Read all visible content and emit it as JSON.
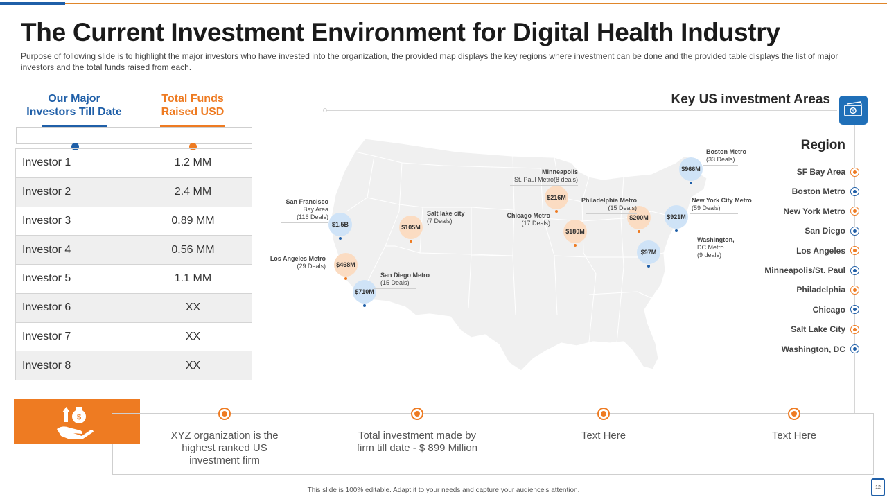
{
  "title": "The Current Investment Environment for Digital Health Industry",
  "subtitle": "Purpose of following slide is to highlight the major investors who have invested into the organization, the provided map displays the key regions where investment can be done and the provided table displays the list of major investors and the total funds raised from each.",
  "table": {
    "header_left": "Our Major Investors Till Date",
    "header_right": "Total Funds Raised USD",
    "rows": [
      {
        "name": "Investor 1",
        "value": "1.2 MM"
      },
      {
        "name": "Investor 2",
        "value": "2.4 MM"
      },
      {
        "name": "Investor 3",
        "value": "0.89 MM"
      },
      {
        "name": "Investor 4",
        "value": "0.56  MM"
      },
      {
        "name": "Investor 5",
        "value": "1.1 MM"
      },
      {
        "name": "Investor 6",
        "value": "XX"
      },
      {
        "name": "Investor 7",
        "value": "XX"
      },
      {
        "name": "Investor 8",
        "value": "XX"
      }
    ]
  },
  "map": {
    "title": "Key US investment Areas",
    "markers": [
      {
        "amount": "$1.5B",
        "label_lines": [
          "San Francisco",
          "Bay Area",
          "(116 Deals)"
        ],
        "color": "blue"
      },
      {
        "amount": "$468M",
        "label_lines": [
          "Los Angeles Metro",
          "(29 Deals)"
        ],
        "color": "orange"
      },
      {
        "amount": "$710M",
        "label_lines": [
          "San Diego Metro",
          "(15 Deals)"
        ],
        "color": "blue"
      },
      {
        "amount": "$105M",
        "label_lines": [
          "Salt lake city",
          "(7 Deals)"
        ],
        "color": "orange"
      },
      {
        "amount": "$216M",
        "label_lines": [
          "Minneapolis",
          "St. Paul Metro(8 deals)"
        ],
        "color": "orange"
      },
      {
        "amount": "$180M",
        "label_lines": [
          "Chicago Metro",
          "(17 Deals)"
        ],
        "color": "orange"
      },
      {
        "amount": "$200M",
        "label_lines": [
          "Philadelphia Metro",
          "(15 Deals)"
        ],
        "color": "orange"
      },
      {
        "amount": "$966M",
        "label_lines": [
          "Boston Metro",
          "(33 Deals)"
        ],
        "color": "blue"
      },
      {
        "amount": "$921M",
        "label_lines": [
          "New York City Metro",
          "(59 Deals)"
        ],
        "color": "blue"
      },
      {
        "amount": "$97M",
        "label_lines": [
          "Washington,",
          "DC Metro",
          "(9 deals)"
        ],
        "color": "blue"
      }
    ]
  },
  "regions": {
    "title": "Region",
    "items": [
      {
        "label": "SF Bay Area",
        "color": "orange"
      },
      {
        "label": "Boston Metro",
        "color": "blue"
      },
      {
        "label": "New York Metro",
        "color": "orange"
      },
      {
        "label": "San Diego",
        "color": "blue"
      },
      {
        "label": "Los Angeles",
        "color": "orange"
      },
      {
        "label": "Minneapolis/St. Paul",
        "color": "blue"
      },
      {
        "label": "Philadelphia",
        "color": "orange"
      },
      {
        "label": "Chicago",
        "color": "blue"
      },
      {
        "label": "Salt Lake City",
        "color": "orange"
      },
      {
        "label": "Washington, DC",
        "color": "blue"
      }
    ]
  },
  "bottom": {
    "items": [
      "XYZ organization is the highest ranked US investment firm",
      "Total investment made by firm till date - $ 899 Million",
      "Text Here",
      "Text Here"
    ]
  },
  "footer": "This slide is 100% editable. Adapt it to your needs and capture your audience's attention.",
  "page_number": "12",
  "colors": {
    "blue": "#1f5fa8",
    "orange": "#ee7b22"
  }
}
